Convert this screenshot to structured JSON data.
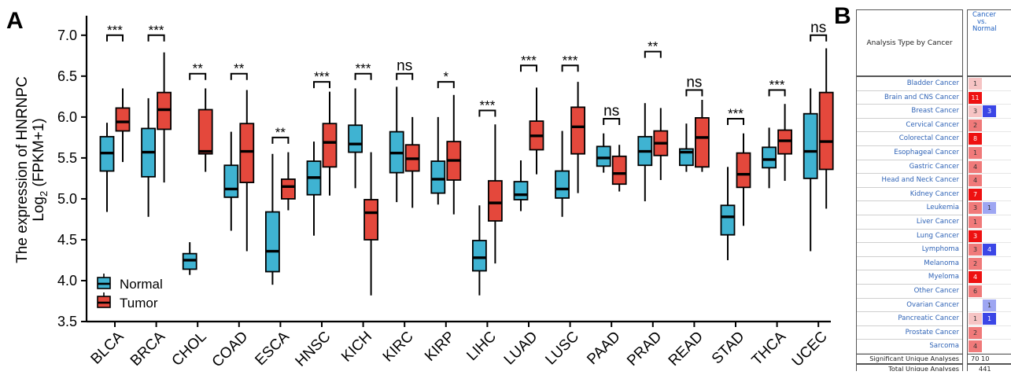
{
  "panel_a_letter": "A",
  "panel_b_letter": "B",
  "colors": {
    "normal": "#3fb3d2",
    "tumor": "#e4483c",
    "axis": "#000000",
    "up_strong": "#ee1111",
    "up_light": "#f6c4c4",
    "down_strong": "#3b46e6",
    "down_light": "#9ea6f2"
  },
  "chart_data": [
    {
      "type": "box",
      "title": "",
      "ylabel_line1": "The expression of HNRNPC",
      "ylabel_line2_prefix": "Log",
      "ylabel_line2_sub": "2",
      "ylabel_line2_suffix": " (FPKM+1)",
      "ylim": [
        3.5,
        7.2
      ],
      "yticks": [
        "3.5",
        "4.0",
        "4.5",
        "5.0",
        "5.5",
        "6.0",
        "6.5",
        "7.0"
      ],
      "legend": {
        "placement": "bottom-left",
        "entries": [
          "Normal",
          "Tumor"
        ]
      },
      "categories": [
        "BLCA",
        "BRCA",
        "CHOL",
        "COAD",
        "ESCA",
        "HNSC",
        "KICH",
        "KIRC",
        "KIRP",
        "LIHC",
        "LUAD",
        "LUSC",
        "PAAD",
        "PRAD",
        "READ",
        "STAD",
        "THCA",
        "UCEC"
      ],
      "series": [
        {
          "name": "Normal",
          "boxes": [
            [
              4.84,
              5.34,
              5.56,
              5.76,
              5.93
            ],
            [
              4.78,
              5.27,
              5.57,
              5.86,
              6.23
            ],
            [
              4.07,
              4.14,
              4.25,
              4.33,
              4.47
            ],
            [
              4.61,
              5.02,
              5.12,
              5.41,
              5.82
            ],
            [
              3.95,
              4.11,
              4.36,
              4.84,
              5.55
            ],
            [
              4.55,
              5.05,
              5.26,
              5.46,
              5.7
            ],
            [
              5.13,
              5.57,
              5.67,
              5.9,
              6.35
            ],
            [
              4.96,
              5.32,
              5.56,
              5.82,
              6.37
            ],
            [
              4.93,
              5.07,
              5.24,
              5.46,
              6.0
            ],
            [
              3.82,
              4.12,
              4.28,
              4.49,
              4.92
            ],
            [
              4.85,
              4.99,
              5.05,
              5.21,
              5.47
            ],
            [
              4.78,
              5.01,
              5.12,
              5.34,
              5.83
            ],
            [
              5.32,
              5.4,
              5.5,
              5.64,
              5.8
            ],
            [
              4.97,
              5.41,
              5.58,
              5.76,
              6.17
            ],
            [
              5.33,
              5.41,
              5.57,
              5.61,
              5.92
            ],
            [
              4.25,
              4.56,
              4.78,
              4.92,
              5.39
            ],
            [
              5.13,
              5.38,
              5.48,
              5.63,
              5.87
            ],
            [
              4.36,
              5.25,
              5.58,
              6.04,
              6.35
            ]
          ]
        },
        {
          "name": "Tumor",
          "boxes": [
            [
              5.45,
              5.83,
              5.94,
              6.11,
              6.35
            ],
            [
              5.2,
              5.85,
              6.09,
              6.3,
              6.79
            ],
            [
              5.33,
              5.55,
              5.58,
              6.09,
              6.35
            ],
            [
              4.36,
              5.2,
              5.58,
              5.92,
              6.33
            ],
            [
              4.86,
              5.0,
              5.15,
              5.24,
              5.57
            ],
            [
              5.04,
              5.39,
              5.69,
              5.92,
              6.31
            ],
            [
              3.82,
              4.5,
              4.83,
              4.99,
              5.57
            ],
            [
              4.89,
              5.34,
              5.49,
              5.66,
              6.0
            ],
            [
              4.81,
              5.23,
              5.47,
              5.7,
              6.27
            ],
            [
              4.21,
              4.73,
              4.95,
              5.22,
              5.91
            ],
            [
              5.3,
              5.6,
              5.77,
              5.95,
              6.36
            ],
            [
              5.07,
              5.55,
              5.88,
              6.12,
              6.43
            ],
            [
              5.09,
              5.18,
              5.31,
              5.52,
              5.66
            ],
            [
              5.23,
              5.53,
              5.68,
              5.83,
              6.11
            ],
            [
              5.33,
              5.39,
              5.75,
              5.99,
              6.21
            ],
            [
              4.67,
              5.14,
              5.3,
              5.56,
              5.8
            ],
            [
              5.22,
              5.55,
              5.71,
              5.84,
              6.16
            ],
            [
              4.88,
              5.36,
              5.7,
              6.3,
              6.84
            ]
          ]
        }
      ],
      "significance": [
        {
          "label": "***",
          "y": 7.0
        },
        {
          "label": "***",
          "y": 7.0
        },
        {
          "label": "**",
          "y": 6.53
        },
        {
          "label": "**",
          "y": 6.53
        },
        {
          "label": "**",
          "y": 5.75
        },
        {
          "label": "***",
          "y": 6.43
        },
        {
          "label": "***",
          "y": 6.53
        },
        {
          "label": "ns",
          "y": 6.53
        },
        {
          "label": "*",
          "y": 6.43
        },
        {
          "label": "***",
          "y": 6.08
        },
        {
          "label": "***",
          "y": 6.63
        },
        {
          "label": "***",
          "y": 6.63
        },
        {
          "label": "ns",
          "y": 5.98
        },
        {
          "label": "**",
          "y": 6.8
        },
        {
          "label": "ns",
          "y": 6.33
        },
        {
          "label": "***",
          "y": 5.98
        },
        {
          "label": "***",
          "y": 6.33
        },
        {
          "label": "ns",
          "y": 7.0
        }
      ]
    },
    {
      "type": "table",
      "header_left": "Analysis Type by Cancer",
      "header_right_lines": [
        "Cancer",
        "vs.",
        "Normal"
      ],
      "rows": [
        {
          "label": "Bladder Cancer",
          "up": "1",
          "up_level": "light",
          "down": "",
          "down_level": ""
        },
        {
          "label": "Brain and CNS Cancer",
          "up": "11",
          "up_level": "strong",
          "down": "",
          "down_level": ""
        },
        {
          "label": "Breast Cancer",
          "up": "3",
          "up_level": "light",
          "down": "3",
          "down_level": "strong"
        },
        {
          "label": "Cervical Cancer",
          "up": "2",
          "up_level": "mid",
          "down": "",
          "down_level": ""
        },
        {
          "label": "Colorectal Cancer",
          "up": "8",
          "up_level": "strong",
          "down": "",
          "down_level": ""
        },
        {
          "label": "Esophageal Cancer",
          "up": "1",
          "up_level": "mid",
          "down": "",
          "down_level": ""
        },
        {
          "label": "Gastric Cancer",
          "up": "4",
          "up_level": "mid",
          "down": "",
          "down_level": ""
        },
        {
          "label": "Head and Neck Cancer",
          "up": "4",
          "up_level": "mid",
          "down": "",
          "down_level": ""
        },
        {
          "label": "Kidney Cancer",
          "up": "7",
          "up_level": "strong",
          "down": "",
          "down_level": ""
        },
        {
          "label": "Leukemia",
          "up": "3",
          "up_level": "mid",
          "down": "1",
          "down_level": "light"
        },
        {
          "label": "Liver Cancer",
          "up": "1",
          "up_level": "mid",
          "down": "",
          "down_level": ""
        },
        {
          "label": "Lung Cancer",
          "up": "3",
          "up_level": "strong",
          "down": "",
          "down_level": ""
        },
        {
          "label": "Lymphoma",
          "up": "3",
          "up_level": "mid",
          "down": "4",
          "down_level": "strong"
        },
        {
          "label": "Melanoma",
          "up": "2",
          "up_level": "mid",
          "down": "",
          "down_level": ""
        },
        {
          "label": "Myeloma",
          "up": "4",
          "up_level": "strong",
          "down": "",
          "down_level": ""
        },
        {
          "label": "Other Cancer",
          "up": "6",
          "up_level": "mid",
          "down": "",
          "down_level": ""
        },
        {
          "label": "Ovarian Cancer",
          "up": "",
          "up_level": "",
          "down": "1",
          "down_level": "light"
        },
        {
          "label": "Pancreatic Cancer",
          "up": "1",
          "up_level": "light",
          "down": "1",
          "down_level": "strong"
        },
        {
          "label": "Prostate Cancer",
          "up": "2",
          "up_level": "mid",
          "down": "",
          "down_level": ""
        },
        {
          "label": "Sarcoma",
          "up": "4",
          "up_level": "mid",
          "down": "",
          "down_level": ""
        }
      ],
      "footer": [
        {
          "label": "Significant Unique Analyses",
          "value": "70   10"
        },
        {
          "label": "Total Unique Analyses",
          "value": "441"
        }
      ]
    }
  ]
}
